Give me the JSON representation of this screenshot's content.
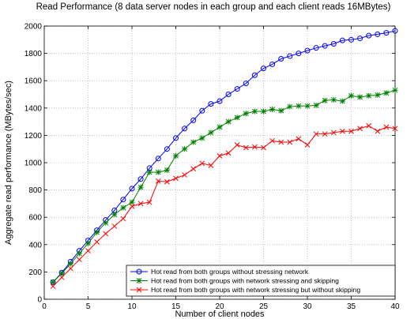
{
  "chart_data": {
    "type": "line",
    "title": "Read Performance (8 data server nodes in each group and each client reads 16MBytes)",
    "xlabel": "Number of client nodes",
    "ylabel": "Aggregate read performance (MBytes/sec)",
    "x": [
      1,
      2,
      3,
      4,
      5,
      6,
      7,
      8,
      9,
      10,
      11,
      12,
      13,
      14,
      15,
      16,
      17,
      18,
      19,
      20,
      21,
      22,
      23,
      24,
      25,
      26,
      27,
      28,
      29,
      30,
      31,
      32,
      33,
      34,
      35,
      36,
      37,
      38,
      39,
      40
    ],
    "series": [
      {
        "name": "Hot read from both groups without stressing network",
        "color": "#0000ff",
        "marker": "circle",
        "values": [
          125,
          195,
          275,
          355,
          430,
          505,
          580,
          650,
          730,
          810,
          880,
          960,
          1030,
          1100,
          1180,
          1250,
          1310,
          1380,
          1430,
          1450,
          1500,
          1540,
          1580,
          1640,
          1690,
          1720,
          1760,
          1780,
          1800,
          1820,
          1840,
          1855,
          1870,
          1895,
          1900,
          1910,
          1930,
          1940,
          1950,
          1965
        ]
      },
      {
        "name": "Hot read from both groups  with network stressing and skipping",
        "color": "#008000",
        "marker": "star",
        "values": [
          125,
          190,
          260,
          335,
          410,
          490,
          560,
          620,
          670,
          710,
          820,
          930,
          930,
          945,
          1050,
          1100,
          1150,
          1180,
          1220,
          1260,
          1300,
          1330,
          1360,
          1375,
          1375,
          1390,
          1380,
          1410,
          1415,
          1415,
          1420,
          1455,
          1460,
          1450,
          1490,
          1480,
          1490,
          1495,
          1510,
          1530
        ]
      },
      {
        "name": "Hot read from both groups with network stressing but without skipping",
        "color": "#ff0000",
        "marker": "x",
        "values": [
          95,
          160,
          225,
          290,
          355,
          420,
          480,
          535,
          590,
          680,
          700,
          710,
          865,
          860,
          885,
          910,
          955,
          995,
          980,
          1050,
          1070,
          1130,
          1110,
          1115,
          1110,
          1160,
          1150,
          1150,
          1175,
          1130,
          1210,
          1210,
          1220,
          1230,
          1230,
          1250,
          1270,
          1230,
          1260,
          1250
        ]
      }
    ],
    "xlim": [
      0,
      40
    ],
    "xticks": [
      0,
      5,
      10,
      15,
      20,
      25,
      30,
      35,
      40
    ],
    "ylim": [
      0,
      2000
    ],
    "yticks": [
      0,
      200,
      400,
      600,
      800,
      1000,
      1200,
      1400,
      1600,
      1800,
      2000
    ],
    "grid": true,
    "legend": "lower right"
  }
}
